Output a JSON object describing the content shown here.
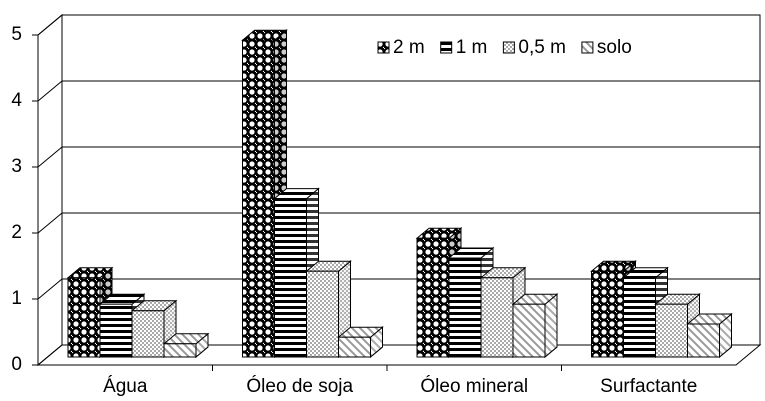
{
  "chart_data": {
    "type": "bar3d",
    "categories": [
      "Água",
      "Óleo de soja",
      "Óleo mineral",
      "Surfactante"
    ],
    "series": [
      {
        "name": "2 m",
        "color": "#000000",
        "values": [
          1.2,
          4.8,
          1.8,
          1.3
        ]
      },
      {
        "name": "1 m",
        "color": "#ffffff",
        "values": [
          0.8,
          2.4,
          1.5,
          1.2
        ]
      },
      {
        "name": "0,5 m",
        "color": "#d0d0d0",
        "values": [
          0.7,
          1.3,
          1.2,
          0.8
        ]
      },
      {
        "name": "solo",
        "color": "#f0f0f0",
        "values": [
          0.2,
          0.3,
          0.8,
          0.5
        ]
      }
    ],
    "ylim": [
      0,
      5
    ],
    "yticks": [
      0,
      1,
      2,
      3,
      4,
      5
    ],
    "grid": true,
    "legend": "top-right"
  }
}
